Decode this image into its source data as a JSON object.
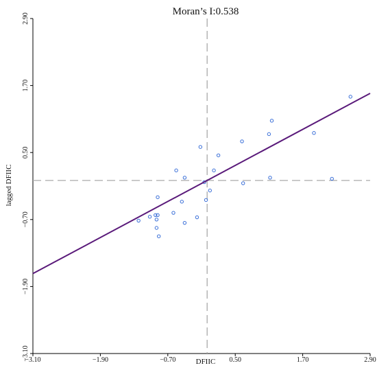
{
  "chart_data": {
    "type": "scatter",
    "title": "Moran’s I:0.538",
    "xlabel": "DFIIC",
    "ylabel": "lagged DFIIC",
    "xlim": [
      -3.1,
      2.9
    ],
    "ylim": [
      -3.1,
      2.9
    ],
    "x_ticks": [
      -3.1,
      -1.9,
      -0.7,
      0.5,
      1.7,
      2.9
    ],
    "y_ticks": [
      -3.1,
      -1.9,
      -0.7,
      0.5,
      1.7,
      2.9
    ],
    "x_tick_labels": [
      "−3.10",
      "−1.90",
      "−0.70",
      "0.50",
      "1.70",
      "2.90"
    ],
    "y_tick_labels": [
      "−3.10",
      "−1.90",
      "−0.70",
      "0.50",
      "1.70",
      "2.90"
    ],
    "mean_x": 0.0,
    "mean_y": 0.0,
    "regression": {
      "slope": 0.538,
      "intercept": 0.0
    },
    "grid": false,
    "legend": "none",
    "colors": {
      "points": "#3a6fd8",
      "regression_line": "#5a1a7a",
      "mean_lines": "#aaaaaa"
    },
    "points": [
      {
        "x": -1.22,
        "y": -0.72
      },
      {
        "x": -1.02,
        "y": -0.65
      },
      {
        "x": -0.92,
        "y": -0.62
      },
      {
        "x": -0.9,
        "y": -0.7
      },
      {
        "x": -0.88,
        "y": -0.62
      },
      {
        "x": -0.9,
        "y": -0.85
      },
      {
        "x": -0.86,
        "y": -1.0
      },
      {
        "x": -0.88,
        "y": -0.3
      },
      {
        "x": -0.6,
        "y": -0.58
      },
      {
        "x": -0.45,
        "y": -0.38
      },
      {
        "x": -0.4,
        "y": -0.76
      },
      {
        "x": -0.4,
        "y": 0.05
      },
      {
        "x": -0.55,
        "y": 0.18
      },
      {
        "x": -0.18,
        "y": -0.66
      },
      {
        "x": -0.12,
        "y": 0.6
      },
      {
        "x": -0.05,
        "y": -0.03
      },
      {
        "x": -0.02,
        "y": -0.35
      },
      {
        "x": 0.05,
        "y": -0.18
      },
      {
        "x": 0.12,
        "y": 0.18
      },
      {
        "x": 0.2,
        "y": 0.45
      },
      {
        "x": 0.62,
        "y": 0.7
      },
      {
        "x": 0.64,
        "y": -0.05
      },
      {
        "x": 1.1,
        "y": 0.83
      },
      {
        "x": 1.12,
        "y": 0.05
      },
      {
        "x": 1.15,
        "y": 1.07
      },
      {
        "x": 1.9,
        "y": 0.85
      },
      {
        "x": 2.22,
        "y": 0.03
      },
      {
        "x": 2.55,
        "y": 1.5
      }
    ]
  }
}
